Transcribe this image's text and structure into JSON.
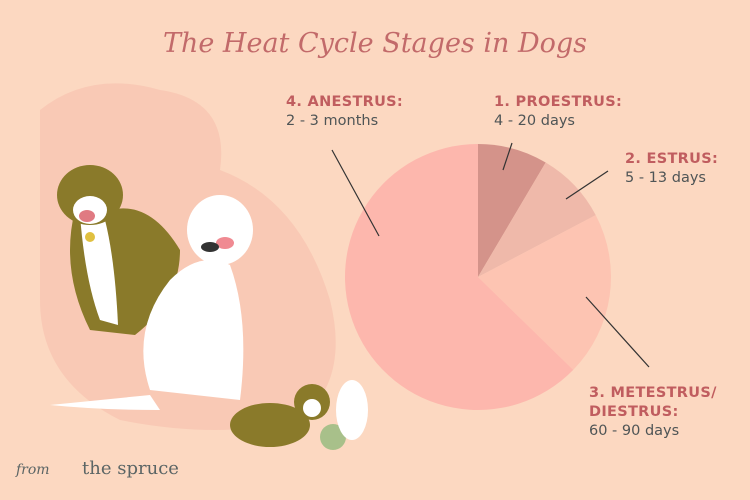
{
  "chart_data": {
    "type": "pie",
    "title": "The Heat Cycle Stages in Dogs",
    "slices": [
      {
        "label": "1. PROESTRUS:",
        "value_text": "4 - 20 days",
        "share_percent": 8.5,
        "color": "#d4938a"
      },
      {
        "label": "2. ESTRUS:",
        "value_text": "5 - 13 days",
        "share_percent": 8.8,
        "color": "#efb9aa"
      },
      {
        "label": "3. METESTRUS/ DIESTRUS:",
        "value_text": "60 - 90 days",
        "share_percent": 20,
        "color": "#fdc4b2"
      },
      {
        "label": "4. ANESTRUS:",
        "value_text": "2 - 3 months",
        "share_percent": 62.7,
        "color": "#fdb7ad"
      }
    ],
    "start_angle": "12 o'clock, clockwise"
  },
  "logo": {
    "from": "from",
    "brand": "the spruce"
  },
  "colors": {
    "background": "#fcd8c1",
    "title": "#c26a6a",
    "label": "#c05d5f",
    "text": "#4f5556"
  }
}
